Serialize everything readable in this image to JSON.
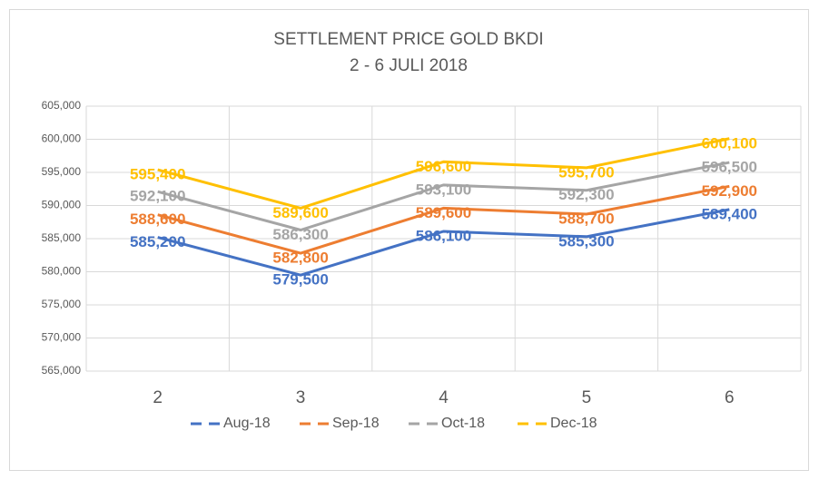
{
  "chart_data": {
    "type": "line",
    "title": "SETTLEMENT PRICE GOLD BKDI",
    "subtitle": "2 - 6 JULI 2018",
    "categories": [
      "2",
      "3",
      "4",
      "5",
      "6"
    ],
    "series": [
      {
        "name": "Aug-18",
        "color": "#4472c4",
        "values": [
          585200,
          579500,
          586100,
          585300,
          589400
        ],
        "value_labels": [
          "585,200",
          "579,500",
          "586,100",
          "585,300",
          "589,400"
        ]
      },
      {
        "name": "Sep-18",
        "color": "#ed7d31",
        "values": [
          588600,
          582800,
          589600,
          588700,
          592900
        ],
        "value_labels": [
          "588,600",
          "582,800",
          "589,600",
          "588,700",
          "592,900"
        ]
      },
      {
        "name": "Oct-18",
        "color": "#a5a5a5",
        "values": [
          592100,
          586300,
          593100,
          592300,
          596500
        ],
        "value_labels": [
          "592,100",
          "586,300",
          "593,100",
          "592,300",
          "596,500"
        ]
      },
      {
        "name": "Dec-18",
        "color": "#ffc000",
        "values": [
          595400,
          589600,
          596600,
          595700,
          600100
        ],
        "value_labels": [
          "595,400",
          "589,600",
          "596,600",
          "595,700",
          "600,100"
        ]
      }
    ],
    "ylim": [
      565000,
      605000
    ],
    "yticks": [
      {
        "value": 565000,
        "label": "565,000"
      },
      {
        "value": 570000,
        "label": "570,000"
      },
      {
        "value": 575000,
        "label": "575,000"
      },
      {
        "value": 580000,
        "label": "580,000"
      },
      {
        "value": 585000,
        "label": "585,000"
      },
      {
        "value": 590000,
        "label": "590,000"
      },
      {
        "value": 595000,
        "label": "595,000"
      },
      {
        "value": 600000,
        "label": "600,000"
      },
      {
        "value": 605000,
        "label": "605,000"
      }
    ],
    "grid": true,
    "legend": "bottom"
  }
}
